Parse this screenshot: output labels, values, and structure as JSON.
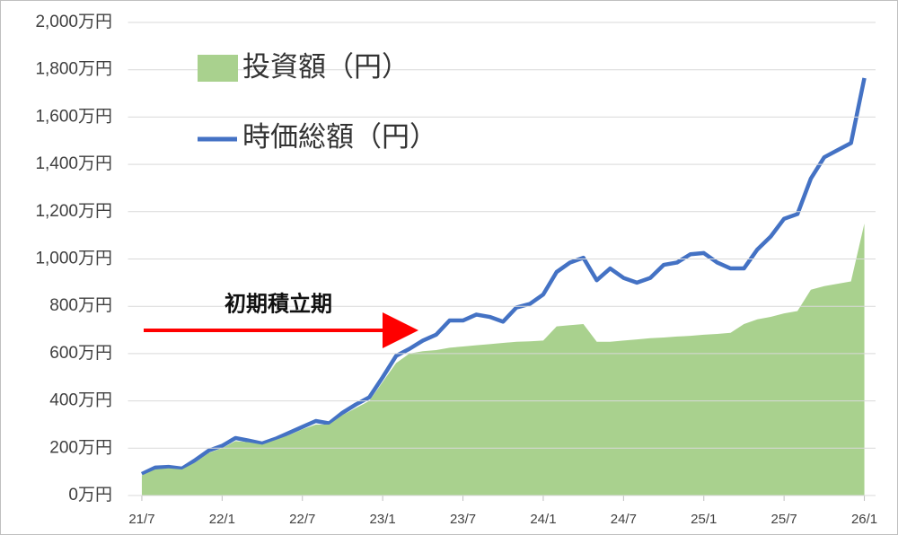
{
  "chart_data": {
    "type": "area-line",
    "categories": [
      "21/7",
      null,
      null,
      null,
      null,
      null,
      "22/1",
      null,
      null,
      null,
      null,
      null,
      "22/7",
      null,
      null,
      null,
      null,
      null,
      "23/1",
      null,
      null,
      null,
      null,
      null,
      "23/7",
      null,
      null,
      null,
      null,
      null,
      "24/1",
      null,
      null,
      null,
      null,
      null,
      "24/7",
      null,
      null,
      null,
      null,
      null,
      "25/1",
      null,
      null,
      null,
      null,
      null,
      "25/7",
      null,
      null,
      null,
      null,
      null,
      "26/1"
    ],
    "series": [
      {
        "name": "投資額（円）",
        "kind": "area",
        "color": "#a9d18e",
        "values": [
          85,
          110,
          115,
          110,
          140,
          180,
          200,
          230,
          225,
          215,
          235,
          255,
          280,
          300,
          300,
          340,
          370,
          400,
          480,
          560,
          600,
          610,
          615,
          625,
          630,
          635,
          640,
          645,
          650,
          652,
          655,
          715,
          720,
          725,
          650,
          650,
          655,
          660,
          665,
          668,
          672,
          675,
          680,
          683,
          688,
          725,
          745,
          755,
          770,
          780,
          870,
          885,
          895,
          905,
          1150
        ]
      },
      {
        "name": "時価総額（円）",
        "kind": "line",
        "color": "#4472c4",
        "values": [
          91,
          118,
          121,
          114,
          150,
          190,
          210,
          243,
          232,
          220,
          240,
          265,
          290,
          315,
          305,
          350,
          385,
          415,
          500,
          590,
          620,
          655,
          680,
          740,
          740,
          765,
          755,
          735,
          795,
          810,
          850,
          945,
          985,
          1005,
          910,
          960,
          920,
          900,
          920,
          975,
          985,
          1020,
          1025,
          985,
          960,
          960,
          1040,
          1095,
          1170,
          1190,
          1340,
          1430,
          1460,
          1490,
          1765
        ]
      }
    ],
    "ylim": [
      0,
      2000
    ],
    "yticks": [
      {
        "value": 0,
        "label": "0万円"
      },
      {
        "value": 200,
        "label": "200万円"
      },
      {
        "value": 400,
        "label": "400万円"
      },
      {
        "value": 600,
        "label": "600万円"
      },
      {
        "value": 800,
        "label": "800万円"
      },
      {
        "value": 1000,
        "label": "1,000万円"
      },
      {
        "value": 1200,
        "label": "1,200万円"
      },
      {
        "value": 1400,
        "label": "1,400万円"
      },
      {
        "value": 1600,
        "label": "1,600万円"
      },
      {
        "value": 1800,
        "label": "1,800万円"
      },
      {
        "value": 2000,
        "label": "2,000万円"
      }
    ],
    "grid": true,
    "annotation": "初期積立期"
  }
}
